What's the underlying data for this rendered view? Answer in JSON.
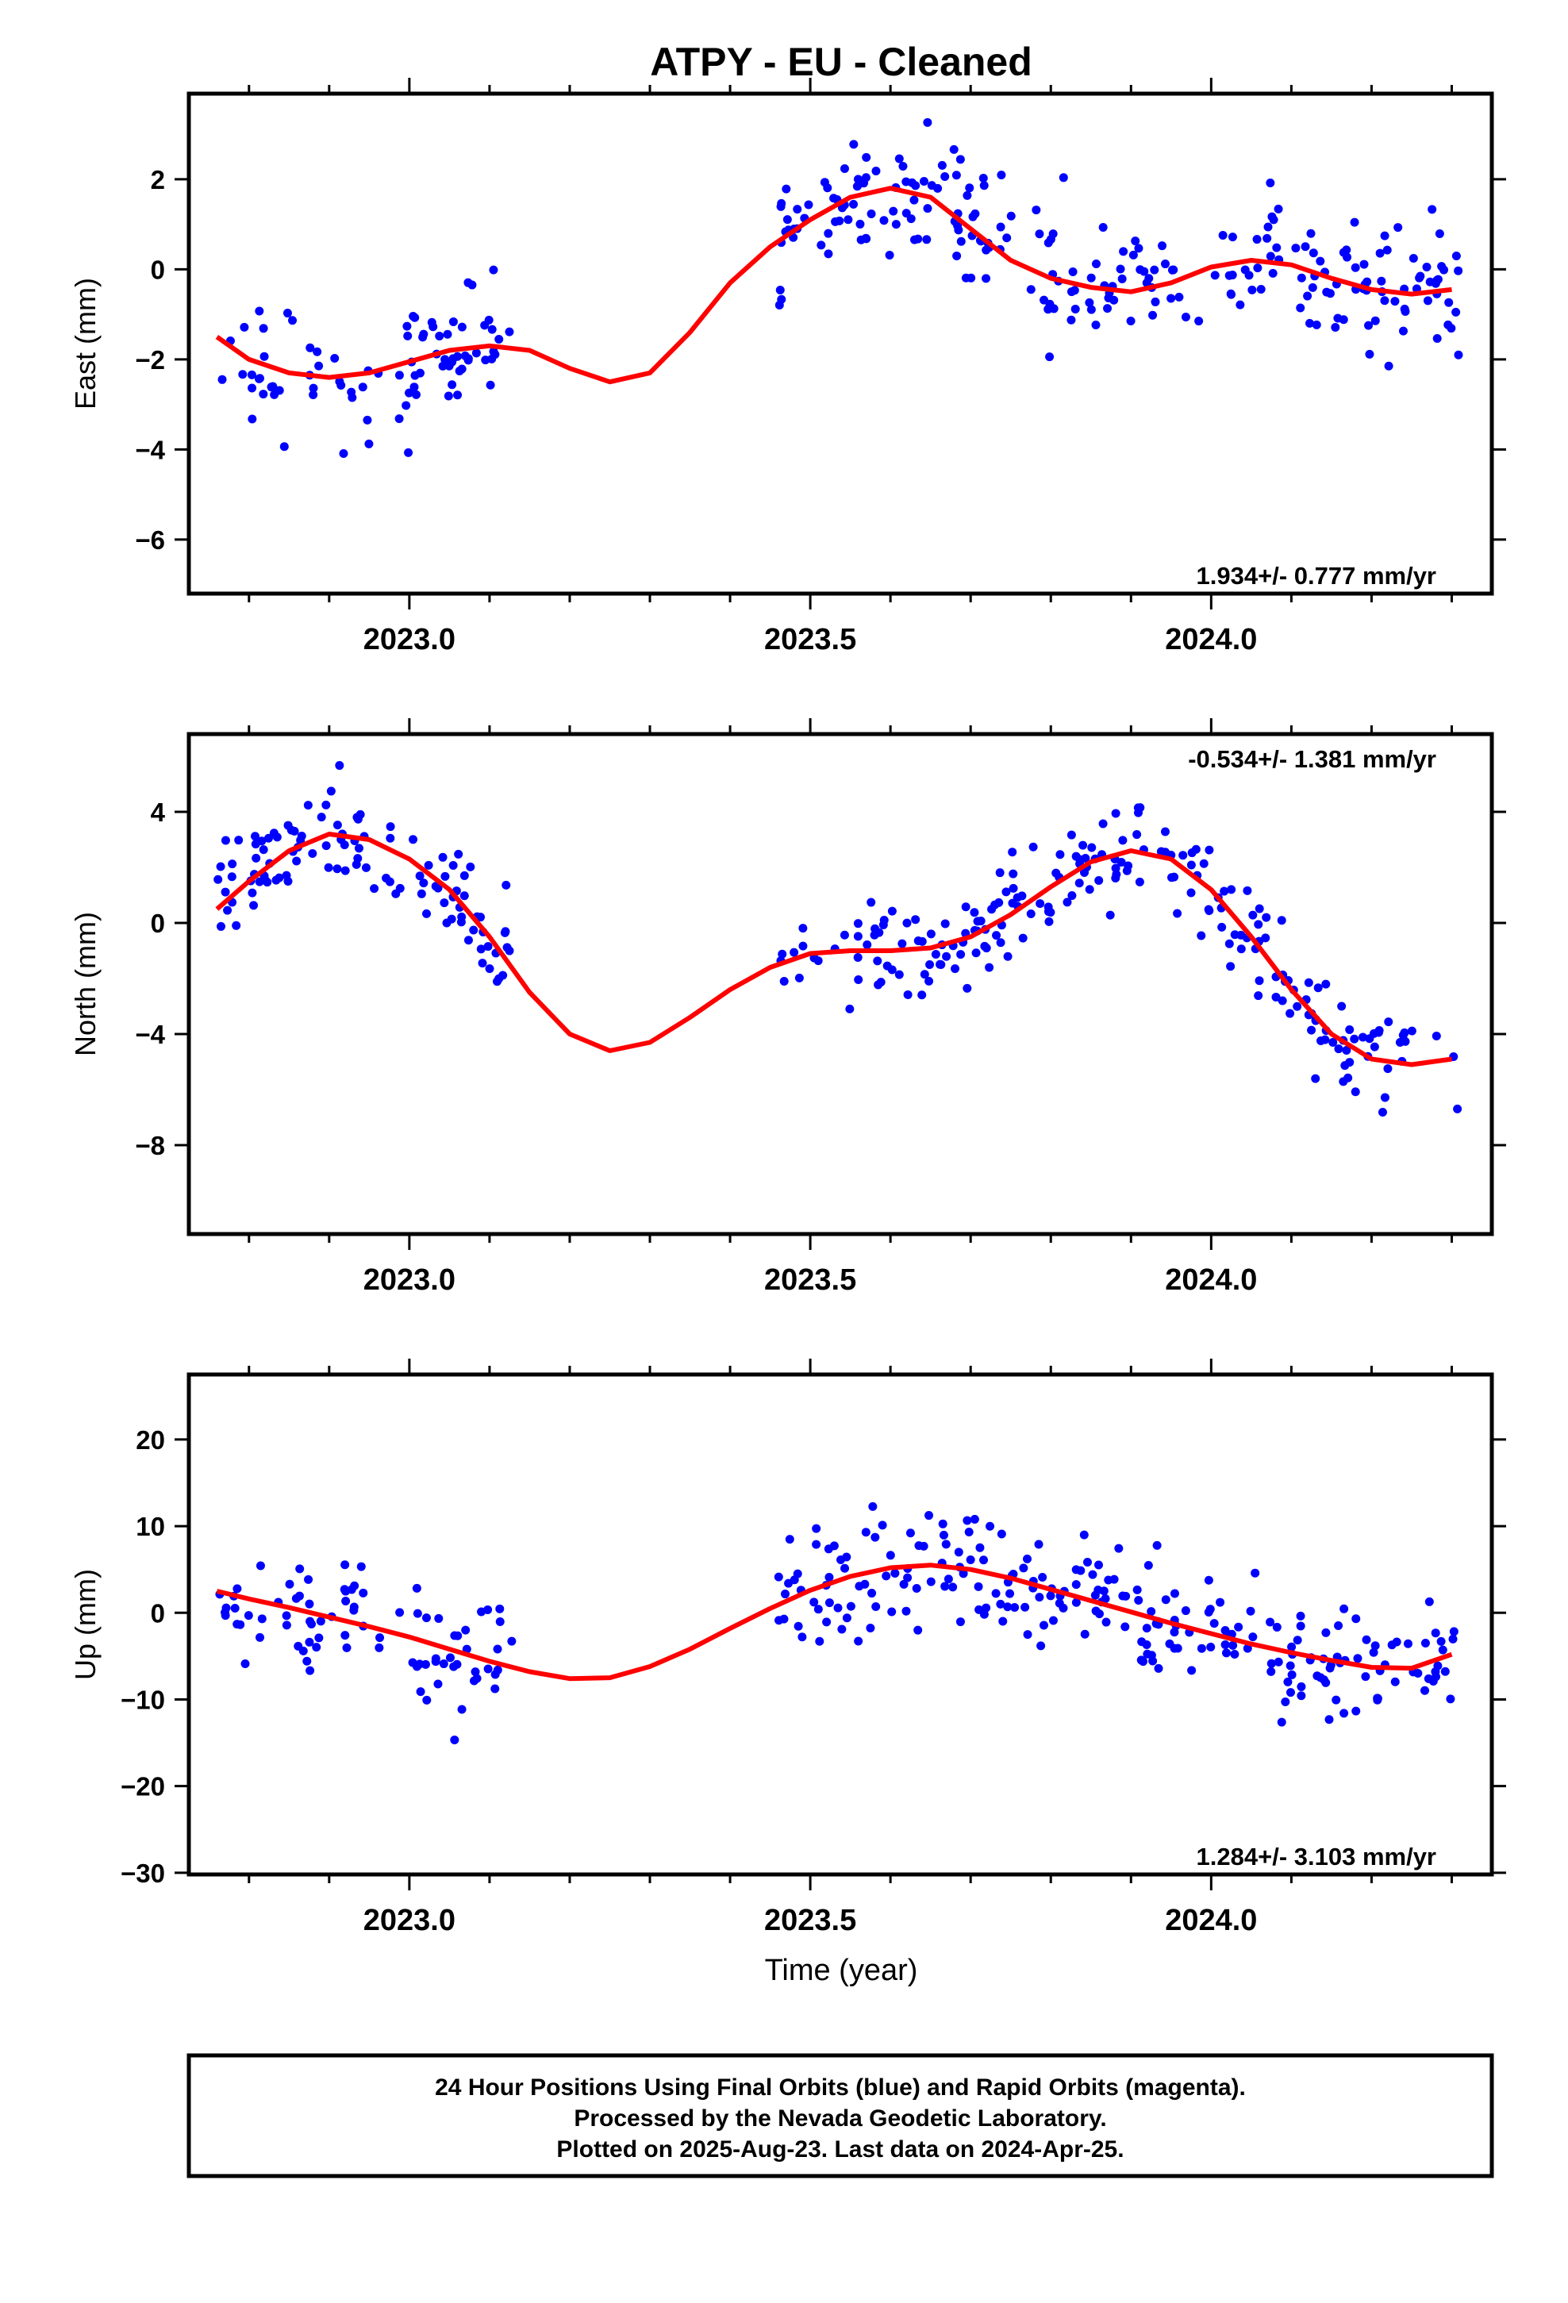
{
  "title": "ATPY  - EU - Cleaned",
  "xlabel": "Time (year)",
  "footer": {
    "line1": "24 Hour Positions Using Final Orbits (blue) and Rapid Orbits (magenta).",
    "line2": "Processed by the Nevada Geodetic Laboratory.",
    "line3": "Plotted on 2025-Aug-23. Last data on 2024-Apr-25."
  },
  "colors": {
    "points": "#0000ff",
    "fit": "#ff0000",
    "frame": "#000000"
  },
  "chart_data": [
    {
      "type": "scatter",
      "ylabel": "East (mm)",
      "rate_label": "1.934+/- 0.777 mm/yr",
      "rate_position": "bottom-right",
      "xlim": [
        2022.725,
        2024.35
      ],
      "ylim": [
        -7.2,
        3.9
      ],
      "yticks": [
        2,
        0,
        -2,
        -4,
        -6
      ],
      "ytick_labels": [
        "2",
        "0",
        "−2",
        "−4",
        "−6"
      ],
      "xticks": [
        2023.0,
        2023.5,
        2024.0
      ],
      "xtick_labels": [
        "2023.0",
        "2023.5",
        "2024.0"
      ],
      "fit": {
        "name": "",
        "x": [
          2022.76,
          2022.8,
          2022.85,
          2022.9,
          2022.95,
          2023.0,
          2023.05,
          2023.1,
          2023.15,
          2023.2,
          2023.25,
          2023.3,
          2023.35,
          2023.4,
          2023.45,
          2023.5,
          2023.55,
          2023.6,
          2023.65,
          2023.7,
          2023.75,
          2023.8,
          2023.85,
          2023.9,
          2023.95,
          2024.0,
          2024.05,
          2024.1,
          2024.15,
          2024.2,
          2024.25,
          2024.3
        ],
        "y": [
          -1.5,
          -2.0,
          -2.3,
          -2.4,
          -2.3,
          -2.05,
          -1.8,
          -1.7,
          -1.8,
          -2.2,
          -2.5,
          -2.3,
          -1.4,
          -0.3,
          0.5,
          1.1,
          1.6,
          1.8,
          1.6,
          0.9,
          0.2,
          -0.2,
          -0.4,
          -0.5,
          -0.3,
          0.05,
          0.2,
          0.1,
          -0.2,
          -0.45,
          -0.55,
          -0.45
        ]
      },
      "points_seed": 11,
      "points_x_ranges": [
        [
          2022.76,
          2023.13
        ],
        [
          2023.46,
          2024.31
        ]
      ],
      "points_count": 330,
      "points_scatter": 1.1
    },
    {
      "type": "scatter",
      "ylabel": "North (mm)",
      "rate_label": "-0.534+/- 1.381 mm/yr",
      "rate_position": "top-right",
      "xlim": [
        2022.725,
        2024.35
      ],
      "ylim": [
        -11.2,
        6.8
      ],
      "yticks": [
        4,
        0,
        -4,
        -8
      ],
      "ytick_labels": [
        "4",
        "0",
        "−4",
        "−8"
      ],
      "xticks": [
        2023.0,
        2023.5,
        2024.0
      ],
      "xtick_labels": [
        "2023.0",
        "2023.5",
        "2024.0"
      ],
      "fit": {
        "name": "",
        "x": [
          2022.76,
          2022.8,
          2022.85,
          2022.9,
          2022.95,
          2023.0,
          2023.05,
          2023.1,
          2023.15,
          2023.2,
          2023.25,
          2023.3,
          2023.35,
          2023.4,
          2023.45,
          2023.5,
          2023.55,
          2023.6,
          2023.65,
          2023.7,
          2023.75,
          2023.8,
          2023.85,
          2023.9,
          2023.95,
          2024.0,
          2024.05,
          2024.1,
          2024.15,
          2024.2,
          2024.25,
          2024.3
        ],
        "y": [
          0.5,
          1.5,
          2.6,
          3.2,
          3.0,
          2.3,
          1.2,
          -0.5,
          -2.5,
          -4.0,
          -4.6,
          -4.3,
          -3.4,
          -2.4,
          -1.6,
          -1.1,
          -1.0,
          -1.0,
          -0.9,
          -0.5,
          0.3,
          1.3,
          2.2,
          2.6,
          2.3,
          1.2,
          -0.5,
          -2.4,
          -4.0,
          -4.9,
          -5.1,
          -4.9
        ]
      },
      "points_seed": 23,
      "points_x_ranges": [
        [
          2022.76,
          2023.13
        ],
        [
          2023.46,
          2024.31
        ]
      ],
      "points_count": 330,
      "points_scatter": 1.3
    },
    {
      "type": "scatter",
      "ylabel": "Up (mm)",
      "rate_label": "1.284+/- 3.103 mm/yr",
      "rate_position": "bottom-right",
      "xlim": [
        2022.725,
        2024.35
      ],
      "ylim": [
        -30.2,
        27.5
      ],
      "yticks": [
        20,
        10,
        0,
        -10,
        -20,
        -30
      ],
      "ytick_labels": [
        "20",
        "10",
        "0",
        "−10",
        "−20",
        "−30"
      ],
      "xticks": [
        2023.0,
        2023.5,
        2024.0
      ],
      "xtick_labels": [
        "2023.0",
        "2023.5",
        "2024.0"
      ],
      "fit": {
        "name": "",
        "x": [
          2022.76,
          2022.8,
          2022.85,
          2022.9,
          2022.95,
          2023.0,
          2023.05,
          2023.1,
          2023.15,
          2023.2,
          2023.25,
          2023.3,
          2023.35,
          2023.4,
          2023.45,
          2023.5,
          2023.55,
          2023.6,
          2023.65,
          2023.7,
          2023.75,
          2023.8,
          2023.85,
          2023.9,
          2023.95,
          2024.0,
          2024.05,
          2024.1,
          2024.15,
          2024.2,
          2024.25,
          2024.3
        ],
        "y": [
          2.5,
          1.6,
          0.6,
          -0.5,
          -1.6,
          -2.8,
          -4.2,
          -5.6,
          -6.8,
          -7.6,
          -7.5,
          -6.2,
          -4.2,
          -1.8,
          0.5,
          2.6,
          4.2,
          5.2,
          5.5,
          5.0,
          4.0,
          2.7,
          1.4,
          0.1,
          -1.2,
          -2.4,
          -3.6,
          -4.6,
          -5.5,
          -6.3,
          -6.4,
          -4.8
        ]
      },
      "points_seed": 37,
      "points_x_ranges": [
        [
          2022.76,
          2023.13
        ],
        [
          2023.46,
          2024.31
        ]
      ],
      "points_count": 330,
      "points_scatter": 4.8
    }
  ]
}
